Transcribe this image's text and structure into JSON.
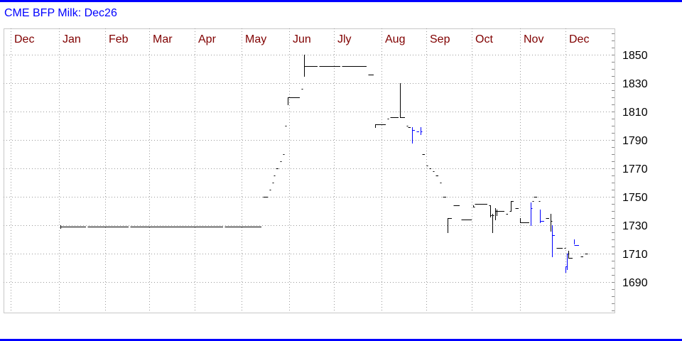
{
  "title": "CME BFP Milk: Dec26",
  "colors": {
    "frame": "#0000ff",
    "title": "#0000ff",
    "month_label": "#800000",
    "bar_default": "#000000",
    "bar_highlight": "#0000ff",
    "grid": "#999999"
  },
  "chart_data": {
    "type": "line",
    "style": "step price bars (high-low verticals with settle steps)",
    "title": "CME BFP Milk: Dec26",
    "x_tick_labels": [
      "Dec",
      "Jan",
      "Feb",
      "Mar",
      "Apr",
      "May",
      "Jun",
      "Jly",
      "Aug",
      "Sep",
      "Oct",
      "Nov",
      "Dec"
    ],
    "y_tick_labels": [
      "1850",
      "1830",
      "1810",
      "1790",
      "1770",
      "1750",
      "1730",
      "1710",
      "1690"
    ],
    "ylim": [
      1668.5,
      1868.5
    ],
    "y_axis_side": "right",
    "grid": true,
    "bars": [
      {
        "d": "Jan 02",
        "h": 1730,
        "l": 1728,
        "c": 1729
      },
      {
        "d": "Jan 20",
        "c": 1729
      },
      {
        "d": "Feb 17",
        "c": 1729
      },
      {
        "d": "Apr 20",
        "c": 1729
      },
      {
        "d": "May 15",
        "c": 1750
      },
      {
        "d": "May 19",
        "c": 1755
      },
      {
        "d": "May 21",
        "c": 1760
      },
      {
        "d": "May 22",
        "c": 1765
      },
      {
        "d": "May 23",
        "c": 1770
      },
      {
        "d": "May 26",
        "c": 1775
      },
      {
        "d": "May 28",
        "c": 1780
      },
      {
        "d": "May 29",
        "c": 1800
      },
      {
        "d": "May 31",
        "h": 1820,
        "l": 1815,
        "c": 1820
      },
      {
        "d": "Jun 09",
        "c": 1826
      },
      {
        "d": "Jun 11",
        "h": 1850,
        "l": 1835,
        "c": 1842
      },
      {
        "d": "Jun 21",
        "c": 1842
      },
      {
        "d": "Jul 06",
        "c": 1842
      },
      {
        "d": "Jul 23",
        "c": 1836
      },
      {
        "d": "Jul 28",
        "h": 1801,
        "l": 1799,
        "c": 1801
      },
      {
        "d": "Aug 05",
        "c": 1805
      },
      {
        "d": "Aug 07",
        "c": 1806
      },
      {
        "d": "Aug 14",
        "h": 1830,
        "l": 1806,
        "c": 1806
      },
      {
        "d": "Aug 18",
        "c": 1800
      },
      {
        "d": "Aug 19",
        "c": 1799
      },
      {
        "d": "Aug 22",
        "h": 1799,
        "l": 1788,
        "c": 1797,
        "blue": true
      },
      {
        "d": "Aug 25",
        "c": 1796,
        "blue": true
      },
      {
        "d": "Aug 28",
        "h": 1799,
        "l": 1794,
        "c": 1796,
        "blue": true
      },
      {
        "d": "Aug 29",
        "c": 1780
      },
      {
        "d": "Sep 01",
        "c": 1772
      },
      {
        "d": "Sep 03",
        "c": 1770
      },
      {
        "d": "Sep 05",
        "c": 1768
      },
      {
        "d": "Sep 07",
        "c": 1765
      },
      {
        "d": "Sep 10",
        "c": 1760
      },
      {
        "d": "Sep 12",
        "c": 1750
      },
      {
        "d": "Sep 15",
        "h": 1735,
        "l": 1725,
        "c": 1735
      },
      {
        "d": "Sep 19",
        "c": 1744
      },
      {
        "d": "Sep 24",
        "c": 1734
      },
      {
        "d": "Oct 02",
        "h": 1744,
        "l": 1743,
        "c": 1743
      },
      {
        "d": "Oct 03",
        "c": 1745
      },
      {
        "d": "Oct 12",
        "c": 1744
      },
      {
        "d": "Oct 13",
        "h": 1744,
        "l": 1736,
        "c": 1737
      },
      {
        "d": "Oct 14",
        "h": 1738,
        "l": 1725,
        "c": 1737
      },
      {
        "d": "Oct 16",
        "h": 1742,
        "l": 1734,
        "c": 1740
      },
      {
        "d": "Oct 17",
        "h": 1741,
        "l": 1737,
        "c": 1740
      },
      {
        "d": "Oct 23",
        "c": 1738
      },
      {
        "d": "Oct 25",
        "c": 1740
      },
      {
        "d": "Oct 26",
        "h": 1747,
        "l": 1740,
        "c": 1747
      },
      {
        "d": "Oct 29",
        "c": 1742
      },
      {
        "d": "Nov 01",
        "h": 1735,
        "l": 1732,
        "c": 1732
      },
      {
        "d": "Nov 08",
        "h": 1746,
        "l": 1730,
        "c": 1742,
        "blue": true
      },
      {
        "d": "Nov 09",
        "c": 1747
      },
      {
        "d": "Nov 10",
        "c": 1750
      },
      {
        "d": "Nov 13",
        "c": 1747
      },
      {
        "d": "Nov 14",
        "h": 1741,
        "l": 1732,
        "c": 1733,
        "blue": true
      },
      {
        "d": "Nov 18",
        "c": 1735
      },
      {
        "d": "Nov 21",
        "h": 1738,
        "l": 1726,
        "c": 1733
      },
      {
        "d": "Nov 22",
        "h": 1730,
        "l": 1708,
        "c": 1723,
        "blue": true
      },
      {
        "d": "Nov 25",
        "c": 1714
      },
      {
        "d": "Nov 30",
        "c": 1714
      },
      {
        "d": "Dec 01",
        "h": 1701,
        "l": 1697,
        "c": 1701,
        "blue": true
      },
      {
        "d": "Dec 02",
        "h": 1710,
        "l": 1699,
        "c": 1710,
        "blue": true
      },
      {
        "d": "Dec 03",
        "h": 1712,
        "l": 1707,
        "c": 1707
      },
      {
        "d": "Dec 07",
        "h": 1720,
        "l": 1717,
        "c": 1716,
        "blue": true
      },
      {
        "d": "Dec 11",
        "c": 1708
      },
      {
        "d": "Dec 14",
        "c": 1710
      }
    ]
  }
}
